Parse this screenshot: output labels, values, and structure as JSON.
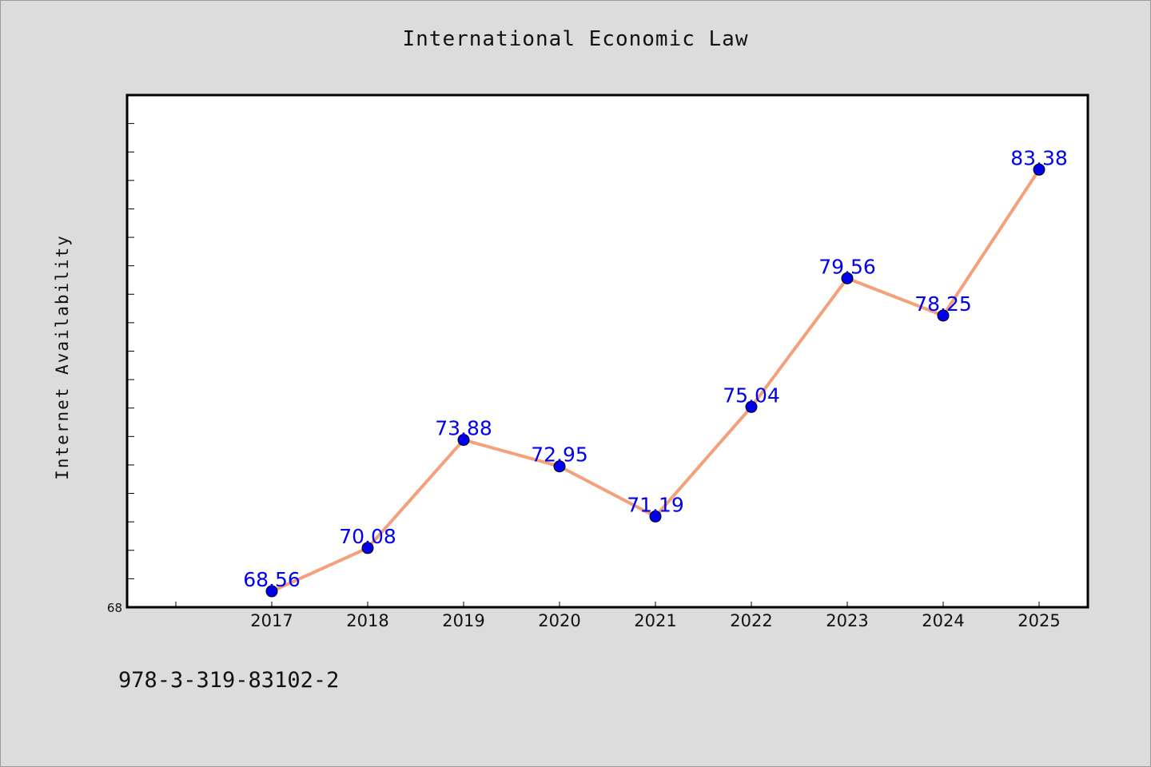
{
  "chart_data": {
    "type": "line",
    "title": "International Economic Law",
    "xlabel": "",
    "ylabel": "Internet Availability",
    "categories": [
      "2017",
      "2018",
      "2019",
      "2020",
      "2021",
      "2022",
      "2023",
      "2024",
      "2025"
    ],
    "series": [
      {
        "values": [
          68.56,
          70.08,
          73.88,
          72.95,
          71.19,
          75.04,
          79.56,
          78.25,
          83.38
        ],
        "line_color": "#f4a07a",
        "marker_color": "#0000ee"
      }
    ],
    "data_labels": [
      "68.56",
      "70.08",
      "73.88",
      "72.95",
      "71.19",
      "75.04",
      "79.56",
      "78.25",
      "83.38"
    ],
    "y_tick_label": "68",
    "ylim": [
      68,
      86
    ],
    "grid": false,
    "legend": "none"
  },
  "footer": {
    "code": "978-3-319-83102-2"
  }
}
